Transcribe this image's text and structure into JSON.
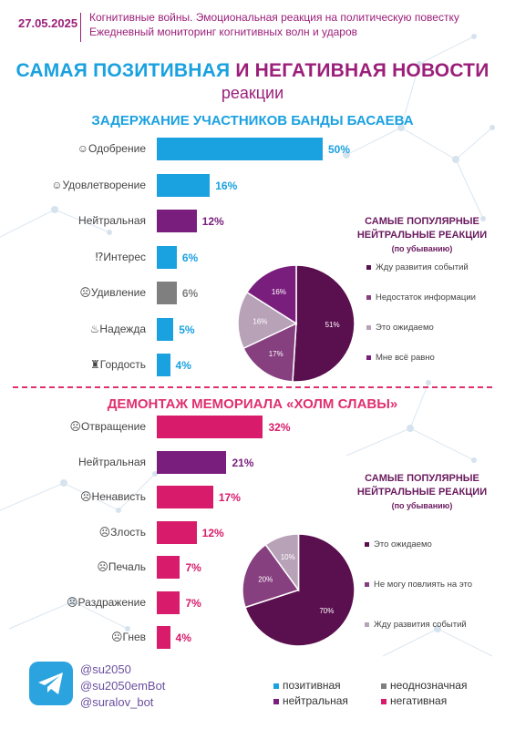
{
  "header": {
    "date": "27.05.2025",
    "line1": "Когнитивные войны. Эмоциональная реакция на политическую повестку",
    "line2": "Ежедневный мониторинг когнитивных волн и ударов"
  },
  "title": {
    "part1": "САМАЯ ПОЗИТИВНАЯ И НЕГАТИВНАЯ НОВОСТИ",
    "part2": "реакции"
  },
  "colors": {
    "positive": "#1aa1e0",
    "neutral": "#7a1e7e",
    "ambiguous": "#7f7f7f",
    "negative": "#d81b6a",
    "pie_dark": "#5a0f4f",
    "pie_mid": "#86407f",
    "pie_light": "#b8a2b8",
    "pie_purple": "#7a1e7e"
  },
  "chart_data": [
    {
      "type": "bar",
      "title": "ЗАДЕРЖАНИЕ УЧАСТНИКОВ БАНДЫ БАСАЕВА",
      "categories": [
        "Одобрение",
        "Удовлетворение",
        "Нейтральная",
        "Интерес",
        "Удивление",
        "Надежда",
        "Гордость"
      ],
      "icons": [
        "☺",
        "☺",
        "",
        "⁉",
        "☹",
        "♨",
        "♜"
      ],
      "values": [
        50,
        16,
        12,
        6,
        6,
        5,
        4
      ],
      "value_labels": [
        "50%",
        "16%",
        "12%",
        "6%",
        "6%",
        "5%",
        "4%"
      ],
      "kinds": [
        "positive",
        "positive",
        "neutral",
        "positive",
        "ambiguous",
        "positive",
        "positive"
      ],
      "xlim": [
        0,
        55
      ]
    },
    {
      "type": "pie",
      "title": "САМЫЕ ПОПУЛЯРНЫЕ НЕЙТРАЛЬНЫЕ РЕАКЦИИ",
      "subtitle": "(по убыванию)",
      "labels": [
        "Жду развития событий",
        "Недостаток информации",
        "Это ожидаемо",
        "Мне всё равно"
      ],
      "values": [
        51,
        17,
        16,
        16
      ],
      "value_labels": [
        "51%",
        "17%",
        "16%",
        "16%"
      ],
      "colors": [
        "#5a0f4f",
        "#86407f",
        "#b8a2b8",
        "#7a1e7e"
      ]
    },
    {
      "type": "bar",
      "title": "ДЕМОНТАЖ МЕМОРИАЛА «ХОЛМ СЛАВЫ»",
      "categories": [
        "Отвращение",
        "Нейтральная",
        "Ненависть",
        "Злость",
        "Печаль",
        "Раздражение",
        "Гнев"
      ],
      "icons": [
        "☹",
        "",
        "☹",
        "☹",
        "☹",
        "☹",
        "☹"
      ],
      "values": [
        32,
        21,
        17,
        12,
        7,
        7,
        4
      ],
      "value_labels": [
        "32%",
        "21%",
        "17%",
        "12%",
        "7%",
        "7%",
        "4%"
      ],
      "kinds": [
        "negative",
        "neutral",
        "negative",
        "negative",
        "negative",
        "negative",
        "negative"
      ],
      "xlim": [
        0,
        55
      ]
    },
    {
      "type": "pie",
      "title": "САМЫЕ ПОПУЛЯРНЫЕ НЕЙТРАЛЬНЫЕ РЕАКЦИИ",
      "subtitle": "(по убыванию)",
      "labels": [
        "Это ожидаемо",
        "Не могу повлиять на это",
        "Жду развития событий"
      ],
      "values": [
        70,
        20,
        10
      ],
      "value_labels": [
        "70%",
        "20%",
        "10%"
      ],
      "colors": [
        "#5a0f4f",
        "#86407f",
        "#b8a2b8"
      ]
    }
  ],
  "social": [
    "@su2050",
    "@su2050emBot",
    "@suralov_bot"
  ],
  "legend": [
    {
      "label": "позитивная",
      "kind": "positive"
    },
    {
      "label": "неоднозначная",
      "kind": "ambiguous"
    },
    {
      "label": "нейтральная",
      "kind": "neutral"
    },
    {
      "label": "негативная",
      "kind": "negative"
    }
  ]
}
